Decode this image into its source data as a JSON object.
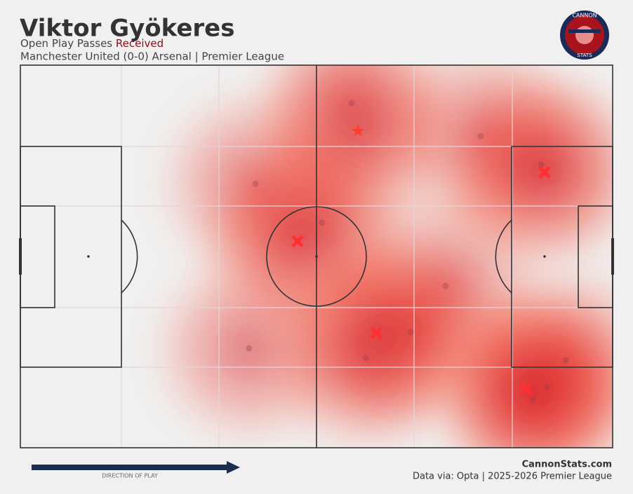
{
  "chart_data": {
    "type": "scatter",
    "title": "Viktor Gyökeres",
    "subtitle": [
      "Open Play Passes",
      "Received"
    ],
    "match": "Manchester United (0-0) Arsenal | Premier League",
    "logo_text": [
      "CANNON",
      "STATS"
    ],
    "credit": "CannonStats.com",
    "source": "Data via: Opta | 2025-2026 Premier League",
    "direction_label": "DIRECTION OF PLAY",
    "xlim": [
      0,
      100
    ],
    "ylim": [
      0,
      100
    ],
    "heat_color": "#d4141e",
    "series": [
      {
        "marker": "circle",
        "color": "#9a3a48",
        "x": [
          55.9,
          77.7,
          87.9,
          39.7,
          50.9,
          71.8,
          65.9,
          38.6,
          58.3,
          92.1,
          88.9,
          86.5
        ],
        "values": [
          90.1,
          81.5,
          74.0,
          69.0,
          58.8,
          42.3,
          30.2,
          26.0,
          23.4,
          22.9,
          15.8,
          12.5
        ]
      },
      {
        "marker": "x",
        "color": "#ff3030",
        "x": [
          88.5,
          46.8,
          60.1,
          85.4
        ],
        "values": [
          72.0,
          54.0,
          30.0,
          15.4
        ]
      },
      {
        "marker": "star",
        "color": "#ff3a2e",
        "x": [
          57.0
        ],
        "values": [
          82.8
        ]
      }
    ]
  }
}
